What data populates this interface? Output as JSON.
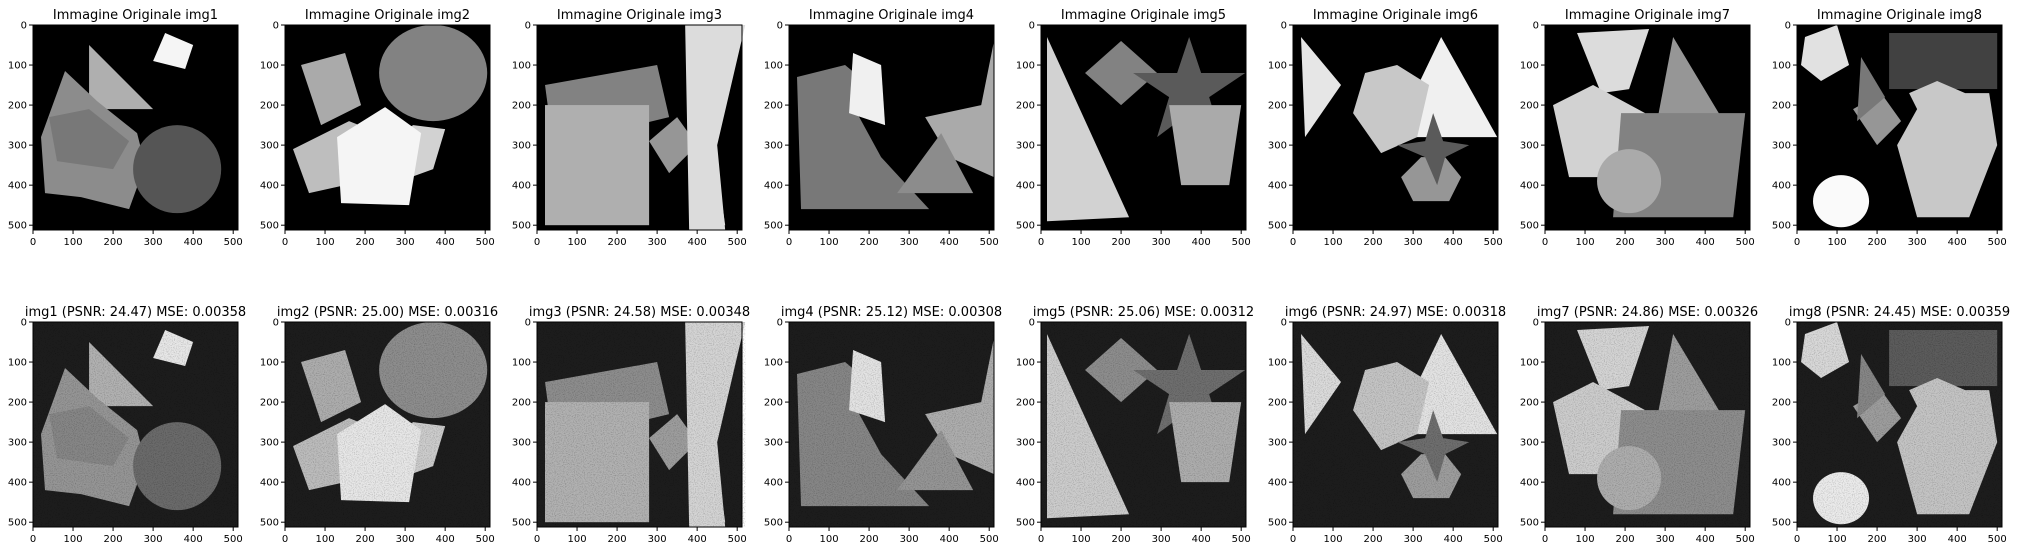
{
  "figure": {
    "background": "#ffffff",
    "frame_color": "#000000"
  },
  "axes_ticks": {
    "x": [
      0,
      100,
      200,
      300,
      400,
      500
    ],
    "y": [
      0,
      100,
      200,
      300,
      400,
      500
    ],
    "range": [
      0,
      512
    ]
  },
  "chart_data": [
    {
      "type": "image",
      "title": "Immagine Originale img1",
      "noise": false
    },
    {
      "type": "image",
      "title": "Immagine Originale img2",
      "noise": false
    },
    {
      "type": "image",
      "title": "Immagine Originale img3",
      "noise": false
    },
    {
      "type": "image",
      "title": "Immagine Originale img4",
      "noise": false
    },
    {
      "type": "image",
      "title": "Immagine Originale img5",
      "noise": false
    },
    {
      "type": "image",
      "title": "Immagine Originale img6",
      "noise": false
    },
    {
      "type": "image",
      "title": "Immagine Originale img7",
      "noise": false
    },
    {
      "type": "image",
      "title": "Immagine Originale img8",
      "noise": false
    },
    {
      "type": "image",
      "title": "img1 (PSNR: 24.47) MSE: 0.00358",
      "noise": true,
      "psnr": 24.47,
      "mse": 0.00358
    },
    {
      "type": "image",
      "title": "img2 (PSNR: 25.00) MSE: 0.00316",
      "noise": true,
      "psnr": 25.0,
      "mse": 0.00316
    },
    {
      "type": "image",
      "title": "img3 (PSNR: 24.58) MSE: 0.00348",
      "noise": true,
      "psnr": 24.58,
      "mse": 0.00348
    },
    {
      "type": "image",
      "title": "img4 (PSNR: 25.12) MSE: 0.00308",
      "noise": true,
      "psnr": 25.12,
      "mse": 0.00308
    },
    {
      "type": "image",
      "title": "img5 (PSNR: 25.06) MSE: 0.00312",
      "noise": true,
      "psnr": 25.06,
      "mse": 0.00312
    },
    {
      "type": "image",
      "title": "img6 (PSNR: 24.97) MSE: 0.00318",
      "noise": true,
      "psnr": 24.97,
      "mse": 0.00318
    },
    {
      "type": "image",
      "title": "img7 (PSNR: 24.86) MSE: 0.00326",
      "noise": true,
      "psnr": 24.86,
      "mse": 0.00326
    },
    {
      "type": "image",
      "title": "img8 (PSNR: 24.45) MSE: 0.00359",
      "noise": true,
      "psnr": 24.45,
      "mse": 0.00359
    }
  ]
}
